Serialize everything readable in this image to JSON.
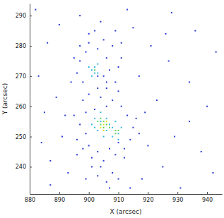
{
  "chart_data": {
    "type": "scatter",
    "x_label": "X (arcsec)",
    "y_label": "Y (arcsec)",
    "xlim": [
      880,
      945
    ],
    "ylim": [
      231,
      294
    ],
    "xticks": [
      880,
      890,
      900,
      910,
      920,
      930,
      940
    ],
    "yticks": [
      240,
      250,
      260,
      270,
      280,
      290
    ],
    "marker": "square",
    "series": [
      {
        "color": "#2a3cd6",
        "x": [
          882,
          886,
          889,
          884,
          893,
          897,
          915,
          921,
          927,
          934,
          940,
          938,
          925,
          918,
          931,
          887,
          883,
          892,
          895,
          913,
          928,
          936,
          943,
          942,
          890,
          911,
          923,
          929,
          934,
          920,
          896,
          891,
          887,
          885,
          899,
          914,
          926,
          917,
          919,
          894,
          897,
          899,
          900,
          903,
          906,
          907,
          906,
          903,
          898,
          896,
          905,
          902,
          908,
          900,
          904,
          909,
          897,
          911,
          898,
          900,
          904,
          908,
          910,
          906,
          899,
          897,
          896,
          898,
          901,
          905,
          909,
          912,
          914,
          915,
          913,
          911,
          906,
          902,
          900,
          903,
          907,
          910,
          899,
          912,
          904,
          908,
          906,
          903,
          910,
          907,
          901,
          916,
          917,
          895,
          905,
          909,
          903,
          910
        ],
        "values": [
          292,
          281,
          263,
          248,
          238,
          290,
          286,
          280,
          275,
          268,
          260,
          245,
          240,
          236,
          233,
          234,
          270,
          257,
          276,
          292,
          291,
          285,
          278,
          238,
          287,
          281,
          262,
          250,
          255,
          247,
          244,
          250,
          242,
          258,
          236,
          233,
          284,
          270,
          258,
          268,
          275,
          278,
          281,
          279,
          276,
          272,
          268,
          266,
          268,
          271,
          282,
          285,
          280,
          284,
          288,
          285,
          280,
          276,
          262,
          264,
          263,
          262,
          265,
          266,
          258,
          254,
          249,
          246,
          243,
          242,
          244,
          246,
          249,
          253,
          257,
          260,
          260,
          259,
          247,
          245,
          246,
          248,
          251,
          243,
          240,
          238,
          235,
          237,
          236,
          233,
          240,
          256,
          251,
          257,
          270,
          268,
          270,
          273
        ]
      },
      {
        "color": "#2fb8e0",
        "x": [
          901,
          902,
          903,
          900,
          902,
          903,
          901,
          902,
          904,
          906,
          907,
          903,
          905,
          908,
          910,
          911,
          909,
          901,
          904,
          906,
          908,
          910,
          902
        ],
        "values": [
          272,
          273,
          271,
          273,
          271,
          274,
          270,
          256,
          258,
          256,
          254,
          252,
          250,
          250,
          251,
          253,
          255,
          254,
          255,
          252,
          253,
          249,
          253
        ]
      },
      {
        "color": "#5ccf5a",
        "x": [
          904,
          905,
          906,
          903,
          905,
          909,
          910,
          909,
          902,
          907,
          904
        ],
        "values": [
          254,
          255,
          254,
          255,
          253,
          252,
          252,
          251,
          272,
          253,
          256
        ]
      },
      {
        "color": "#e6e31e",
        "x": [
          905,
          904,
          906,
          905
        ],
        "values": [
          254,
          253,
          255,
          252
        ]
      }
    ]
  }
}
